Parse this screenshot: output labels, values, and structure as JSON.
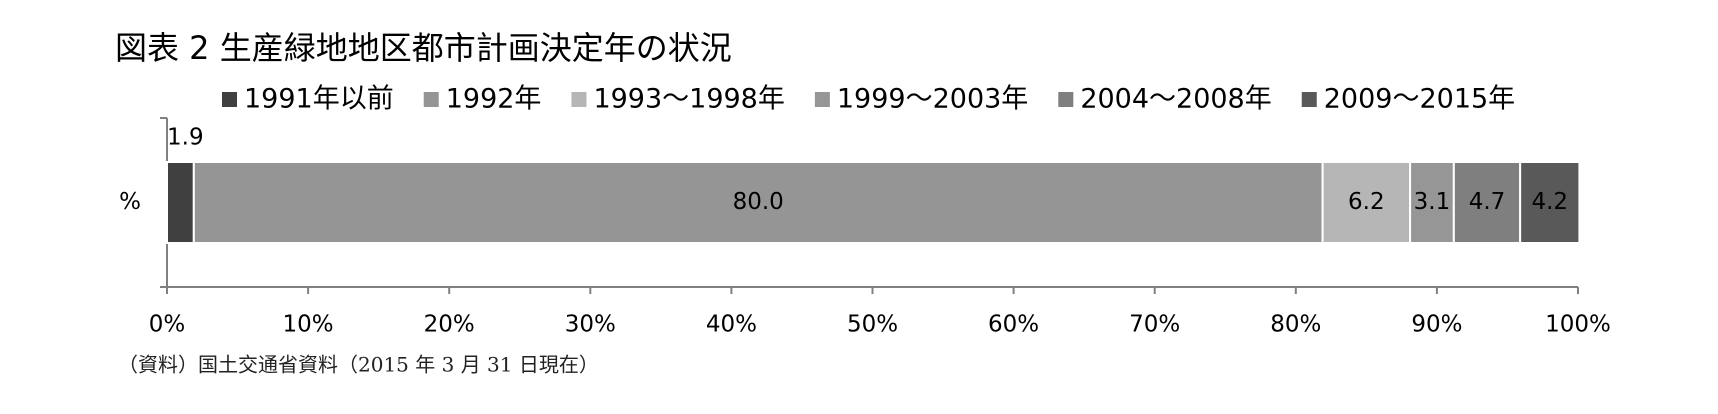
{
  "chart_data": {
    "type": "stacked-barh",
    "title": "図表 2 生産緑地地区都市計画決定年の状況",
    "source": "（資料）国土交通省資料（2015 年 3 月 31 日現在）",
    "categories": [
      "%"
    ],
    "series": [
      {
        "name": "1991年以前",
        "color": "#404040",
        "values": [
          1.9
        ]
      },
      {
        "name": "1992年",
        "color": "#959595",
        "values": [
          80.0
        ],
        "value_labels": [
          "80.0"
        ]
      },
      {
        "name": "1993～1998年",
        "color": "#b6b6b6",
        "values": [
          6.2
        ]
      },
      {
        "name": "1999～2003年",
        "color": "#969696",
        "values": [
          3.1
        ]
      },
      {
        "name": "2004～2008年",
        "color": "#7f7f7f",
        "values": [
          4.7
        ]
      },
      {
        "name": "2009～2015年",
        "color": "#595959",
        "values": [
          4.2
        ]
      }
    ],
    "xlim": [
      0,
      100
    ],
    "xticks": [
      {
        "value": 0,
        "label": "0%"
      },
      {
        "value": 10,
        "label": "10%"
      },
      {
        "value": 20,
        "label": "20%"
      },
      {
        "value": 30,
        "label": "30%"
      },
      {
        "value": 40,
        "label": "40%"
      },
      {
        "value": 50,
        "label": "50%"
      },
      {
        "value": 60,
        "label": "60%"
      },
      {
        "value": 70,
        "label": "70%"
      },
      {
        "value": 80,
        "label": "80%"
      },
      {
        "value": 90,
        "label": "90%"
      },
      {
        "value": 100,
        "label": "100%"
      }
    ],
    "legend": "top"
  }
}
